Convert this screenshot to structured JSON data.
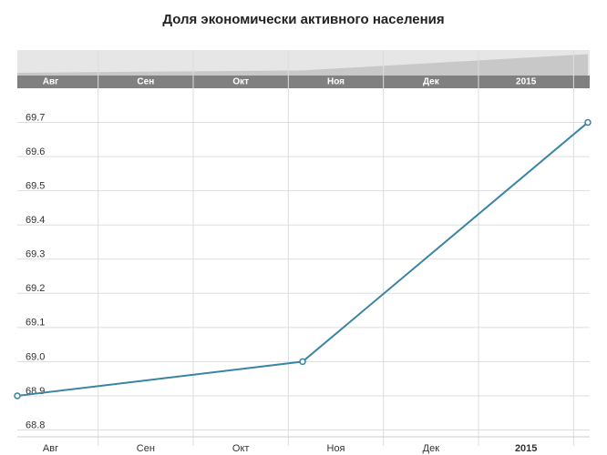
{
  "chart_data": {
    "type": "line",
    "title": "Доля экономически активного населения",
    "x": [
      0,
      3,
      6
    ],
    "xlim": [
      0,
      6
    ],
    "xticks": [
      {
        "value": 0.35,
        "label": "Авг"
      },
      {
        "value": 1.35,
        "label": "Сен"
      },
      {
        "value": 2.35,
        "label": "Окт"
      },
      {
        "value": 3.35,
        "label": "Ноя"
      },
      {
        "value": 4.35,
        "label": "Дек"
      },
      {
        "value": 5.35,
        "label": "2015"
      }
    ],
    "series": [
      {
        "color": "#3a84a3",
        "values": [
          68.9,
          69.0,
          69.7
        ]
      }
    ],
    "ylim": [
      68.78,
      69.8
    ],
    "yticks": [
      68.8,
      68.9,
      {
        "value": 69.0,
        "label": "69.0"
      },
      69.1,
      69.2,
      69.3,
      69.4,
      69.5,
      69.6,
      69.7
    ],
    "grid": true
  }
}
